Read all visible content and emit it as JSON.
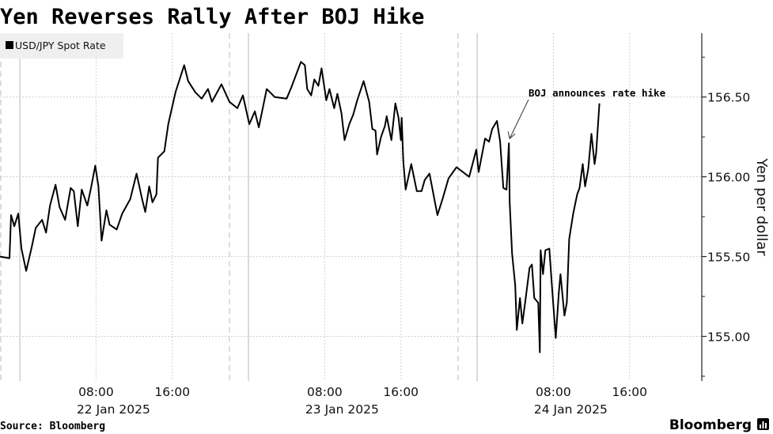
{
  "chart_data": {
    "type": "line",
    "title": "Yen Reverses Rally After BOJ Hike",
    "ylabel": "Yen per dollar",
    "xlabel": "",
    "legend": {
      "placement": "top-left",
      "entries": [
        {
          "name": "USD/JPY Spot Rate",
          "color": "#000000"
        }
      ]
    },
    "ylim": [
      154.72,
      156.9
    ],
    "xlim": [
      "2025-01-21T21:55",
      "2025-01-24T23:35"
    ],
    "grid": true,
    "y_ticks": [
      {
        "value": 156.5,
        "label": "156.50"
      },
      {
        "value": 156.0,
        "label": "156.00"
      },
      {
        "value": 155.5,
        "label": "155.50"
      },
      {
        "value": 155.0,
        "label": "155.00"
      }
    ],
    "y_minor_ticks": [
      156.75,
      156.25,
      155.75,
      155.25,
      154.75
    ],
    "x_ticks": [
      {
        "time": "2025-01-22T08:00",
        "label": "08:00"
      },
      {
        "time": "2025-01-22T16:00",
        "label": "16:00"
      },
      {
        "time": "2025-01-23T08:00",
        "label": "08:00"
      },
      {
        "time": "2025-01-23T16:00",
        "label": "16:00"
      },
      {
        "time": "2025-01-24T08:00",
        "label": "08:00"
      },
      {
        "time": "2025-01-24T16:00",
        "label": "16:00"
      }
    ],
    "date_labels": [
      {
        "time": "2025-01-22T08:00",
        "label": "22 Jan 2025"
      },
      {
        "time": "2025-01-23T08:00",
        "label": "23 Jan 2025"
      },
      {
        "time": "2025-01-24T08:00",
        "label": "24 Jan 2025"
      }
    ],
    "day_dividers": [
      "2025-01-22T00:00",
      "2025-01-23T00:00",
      "2025-01-24T00:00"
    ],
    "dashed_markers": [
      "2025-01-21T22:00",
      "2025-01-22T22:00",
      "2025-01-23T22:00"
    ],
    "annotation": {
      "text": "BOJ announces rate hike",
      "time": "2025-01-24T03:20",
      "value": 156.21
    },
    "series": [
      {
        "name": "USD/JPY Spot Rate",
        "color": "#000000",
        "points": [
          [
            "2025-01-21T21:55",
            155.5
          ],
          [
            "2025-01-21T22:55",
            155.49
          ],
          [
            "2025-01-21T23:05",
            155.76
          ],
          [
            "2025-01-21T23:25",
            155.69
          ],
          [
            "2025-01-21T23:50",
            155.77
          ],
          [
            "2025-01-22T00:10",
            155.55
          ],
          [
            "2025-01-22T00:40",
            155.41
          ],
          [
            "2025-01-22T01:15",
            155.56
          ],
          [
            "2025-01-22T01:40",
            155.68
          ],
          [
            "2025-01-22T02:20",
            155.73
          ],
          [
            "2025-01-22T02:45",
            155.65
          ],
          [
            "2025-01-22T03:10",
            155.82
          ],
          [
            "2025-01-22T03:45",
            155.95
          ],
          [
            "2025-01-22T04:10",
            155.81
          ],
          [
            "2025-01-22T04:45",
            155.73
          ],
          [
            "2025-01-22T05:20",
            155.93
          ],
          [
            "2025-01-22T05:40",
            155.91
          ],
          [
            "2025-01-22T06:05",
            155.69
          ],
          [
            "2025-01-22T06:30",
            155.92
          ],
          [
            "2025-01-22T07:05",
            155.82
          ],
          [
            "2025-01-22T07:30",
            155.94
          ],
          [
            "2025-01-22T07:55",
            156.07
          ],
          [
            "2025-01-22T08:15",
            155.94
          ],
          [
            "2025-01-22T08:35",
            155.6
          ],
          [
            "2025-01-22T09:05",
            155.79
          ],
          [
            "2025-01-22T09:25",
            155.7
          ],
          [
            "2025-01-22T10:10",
            155.67
          ],
          [
            "2025-01-22T10:45",
            155.77
          ],
          [
            "2025-01-22T11:35",
            155.86
          ],
          [
            "2025-01-22T12:15",
            156.02
          ],
          [
            "2025-01-22T12:50",
            155.86
          ],
          [
            "2025-01-22T13:10",
            155.78
          ],
          [
            "2025-01-22T13:35",
            155.94
          ],
          [
            "2025-01-22T13:55",
            155.84
          ],
          [
            "2025-01-22T14:20",
            155.89
          ],
          [
            "2025-01-22T14:30",
            156.12
          ],
          [
            "2025-01-22T15:10",
            156.16
          ],
          [
            "2025-01-22T15:35",
            156.33
          ],
          [
            "2025-01-22T16:20",
            156.53
          ],
          [
            "2025-01-22T17:15",
            156.7
          ],
          [
            "2025-01-22T17:40",
            156.6
          ],
          [
            "2025-01-22T18:25",
            156.53
          ],
          [
            "2025-01-22T19:05",
            156.49
          ],
          [
            "2025-01-22T19:45",
            156.55
          ],
          [
            "2025-01-22T20:10",
            156.47
          ],
          [
            "2025-01-22T21:10",
            156.58
          ],
          [
            "2025-01-22T22:00",
            156.47
          ],
          [
            "2025-01-22T22:50",
            156.43
          ],
          [
            "2025-01-22T23:25",
            156.51
          ],
          [
            "2025-01-23T00:05",
            156.33
          ],
          [
            "2025-01-23T00:40",
            156.41
          ],
          [
            "2025-01-23T01:05",
            156.31
          ],
          [
            "2025-01-23T01:55",
            156.55
          ],
          [
            "2025-01-23T02:45",
            156.5
          ],
          [
            "2025-01-23T04:00",
            156.49
          ],
          [
            "2025-01-23T04:30",
            156.56
          ],
          [
            "2025-01-23T05:30",
            156.72
          ],
          [
            "2025-01-23T05:55",
            156.7
          ],
          [
            "2025-01-23T06:10",
            156.55
          ],
          [
            "2025-01-23T06:35",
            156.51
          ],
          [
            "2025-01-23T06:55",
            156.61
          ],
          [
            "2025-01-23T07:20",
            156.57
          ],
          [
            "2025-01-23T07:40",
            156.68
          ],
          [
            "2025-01-23T08:10",
            156.48
          ],
          [
            "2025-01-23T08:30",
            156.55
          ],
          [
            "2025-01-23T09:00",
            156.43
          ],
          [
            "2025-01-23T09:20",
            156.52
          ],
          [
            "2025-01-23T09:45",
            156.4
          ],
          [
            "2025-01-23T10:05",
            156.23
          ],
          [
            "2025-01-23T10:35",
            156.33
          ],
          [
            "2025-01-23T11:00",
            156.39
          ],
          [
            "2025-01-23T11:25",
            156.48
          ],
          [
            "2025-01-23T12:05",
            156.6
          ],
          [
            "2025-01-23T12:40",
            156.47
          ],
          [
            "2025-01-23T13:00",
            156.3
          ],
          [
            "2025-01-23T13:20",
            156.29
          ],
          [
            "2025-01-23T13:30",
            156.14
          ],
          [
            "2025-01-23T13:55",
            156.25
          ],
          [
            "2025-01-23T14:20",
            156.32
          ],
          [
            "2025-01-23T14:30",
            156.38
          ],
          [
            "2025-01-23T15:00",
            156.23
          ],
          [
            "2025-01-23T15:25",
            156.46
          ],
          [
            "2025-01-23T15:45",
            156.37
          ],
          [
            "2025-01-23T16:00",
            156.23
          ],
          [
            "2025-01-23T16:05",
            156.37
          ],
          [
            "2025-01-23T16:15",
            156.1
          ],
          [
            "2025-01-23T16:30",
            155.92
          ],
          [
            "2025-01-23T17:05",
            156.08
          ],
          [
            "2025-01-23T17:40",
            155.91
          ],
          [
            "2025-01-23T18:10",
            155.91
          ],
          [
            "2025-01-23T18:30",
            155.98
          ],
          [
            "2025-01-23T19:00",
            156.02
          ],
          [
            "2025-01-23T19:50",
            155.76
          ],
          [
            "2025-01-23T20:25",
            155.87
          ],
          [
            "2025-01-23T21:00",
            155.99
          ],
          [
            "2025-01-23T21:50",
            156.06
          ],
          [
            "2025-01-23T23:10",
            156.0
          ],
          [
            "2025-01-23T23:55",
            156.17
          ],
          [
            "2025-01-24T00:10",
            156.03
          ],
          [
            "2025-01-24T00:50",
            156.24
          ],
          [
            "2025-01-24T01:15",
            156.22
          ],
          [
            "2025-01-24T01:35",
            156.3
          ],
          [
            "2025-01-24T02:05",
            156.35
          ],
          [
            "2025-01-24T02:25",
            156.22
          ],
          [
            "2025-01-24T02:45",
            155.93
          ],
          [
            "2025-01-24T03:05",
            155.92
          ],
          [
            "2025-01-24T03:20",
            156.21
          ],
          [
            "2025-01-24T03:25",
            155.84
          ],
          [
            "2025-01-24T03:40",
            155.52
          ],
          [
            "2025-01-24T04:00",
            155.32
          ],
          [
            "2025-01-24T04:10",
            155.04
          ],
          [
            "2025-01-24T04:30",
            155.24
          ],
          [
            "2025-01-24T04:45",
            155.08
          ],
          [
            "2025-01-24T05:05",
            155.23
          ],
          [
            "2025-01-24T05:30",
            155.43
          ],
          [
            "2025-01-24T05:45",
            155.45
          ],
          [
            "2025-01-24T06:00",
            155.24
          ],
          [
            "2025-01-24T06:25",
            155.21
          ],
          [
            "2025-01-24T06:35",
            154.9
          ],
          [
            "2025-01-24T06:40",
            155.54
          ],
          [
            "2025-01-24T06:55",
            155.39
          ],
          [
            "2025-01-24T07:10",
            155.54
          ],
          [
            "2025-01-24T07:35",
            155.55
          ],
          [
            "2025-01-24T07:50",
            155.33
          ],
          [
            "2025-01-24T08:15",
            154.99
          ],
          [
            "2025-01-24T08:35",
            155.28
          ],
          [
            "2025-01-24T08:45",
            155.39
          ],
          [
            "2025-01-24T09:10",
            155.13
          ],
          [
            "2025-01-24T09:25",
            155.21
          ],
          [
            "2025-01-24T09:40",
            155.61
          ],
          [
            "2025-01-24T10:05",
            155.77
          ],
          [
            "2025-01-24T10:30",
            155.89
          ],
          [
            "2025-01-24T10:45",
            155.93
          ],
          [
            "2025-01-24T11:05",
            156.08
          ],
          [
            "2025-01-24T11:20",
            155.94
          ],
          [
            "2025-01-24T11:40",
            156.05
          ],
          [
            "2025-01-24T12:00",
            156.27
          ],
          [
            "2025-01-24T12:20",
            156.08
          ],
          [
            "2025-01-24T12:30",
            156.15
          ],
          [
            "2025-01-24T12:50",
            156.46
          ]
        ]
      }
    ]
  },
  "footer": {
    "source": "Source: Bloomberg",
    "brand": "Bloomberg"
  }
}
